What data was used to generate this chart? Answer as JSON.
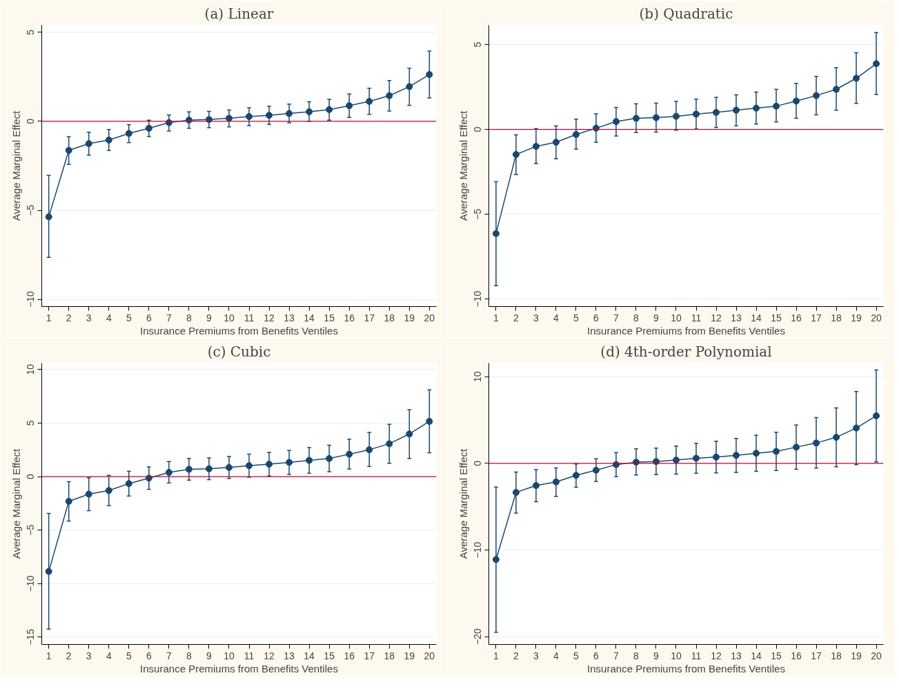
{
  "chart_data": [
    {
      "type": "line",
      "title": "(a) Linear",
      "xlabel": "Insurance Premiums from Benefits Ventiles",
      "ylabel": "Average Marginal Effect",
      "x": [
        1,
        2,
        3,
        4,
        5,
        6,
        7,
        8,
        9,
        10,
        11,
        12,
        13,
        14,
        15,
        16,
        17,
        18,
        19,
        20
      ],
      "series": [
        {
          "color": "#1a476f",
          "values": [
            -5.36,
            -1.63,
            -1.25,
            -1.05,
            -0.68,
            -0.39,
            -0.07,
            0.07,
            0.1,
            0.17,
            0.27,
            0.34,
            0.44,
            0.54,
            0.66,
            0.88,
            1.12,
            1.44,
            1.95,
            2.63
          ],
          "errors": [
            [
              -7.64,
              -3.03
            ],
            [
              -2.41,
              -0.86
            ],
            [
              -1.9,
              -0.61
            ],
            [
              -1.64,
              -0.46
            ],
            [
              -1.19,
              -0.19
            ],
            [
              -0.85,
              0.07
            ],
            [
              -0.54,
              0.36
            ],
            [
              -0.39,
              0.53
            ],
            [
              -0.36,
              0.56
            ],
            [
              -0.31,
              0.64
            ],
            [
              -0.24,
              0.76
            ],
            [
              -0.17,
              0.85
            ],
            [
              -0.08,
              0.97
            ],
            [
              0,
              1.1
            ],
            [
              0.07,
              1.24
            ],
            [
              0.22,
              1.54
            ],
            [
              0.39,
              1.86
            ],
            [
              0.58,
              2.29
            ],
            [
              0.9,
              2.98
            ],
            [
              1.31,
              3.95
            ]
          ]
        }
      ],
      "xlim": [
        0.65,
        20.35
      ],
      "xticks": [
        1,
        2,
        3,
        4,
        5,
        6,
        7,
        8,
        9,
        10,
        11,
        12,
        13,
        14,
        15,
        16,
        17,
        18,
        19,
        20
      ],
      "ylim": [
        -10.4,
        5.4
      ],
      "yticks": [
        -10,
        -5,
        0,
        5
      ],
      "ref_lines": [
        {
          "axis": "y",
          "value": 0,
          "color": "#c10534"
        }
      ],
      "grid": "y",
      "marker": "circle",
      "line_style": "solid"
    },
    {
      "type": "line",
      "title": "(b) Quadratic",
      "xlabel": "Insurance Premiums from Benefits Ventiles",
      "ylabel": "Average Marginal Effect",
      "x": [
        1,
        2,
        3,
        4,
        5,
        6,
        7,
        8,
        9,
        10,
        11,
        12,
        13,
        14,
        15,
        16,
        17,
        18,
        19,
        20
      ],
      "series": [
        {
          "color": "#1a476f",
          "values": [
            -6.14,
            -1.48,
            -1.0,
            -0.76,
            -0.3,
            0.07,
            0.46,
            0.65,
            0.69,
            0.77,
            0.9,
            1.0,
            1.13,
            1.25,
            1.37,
            1.67,
            1.99,
            2.36,
            3.01,
            3.87
          ],
          "errors": [
            [
              -9.21,
              -3.08
            ],
            [
              -2.66,
              -0.32
            ],
            [
              -2.02,
              0.04
            ],
            [
              -1.73,
              0.21
            ],
            [
              -1.16,
              0.6
            ],
            [
              -0.76,
              0.92
            ],
            [
              -0.39,
              1.29
            ],
            [
              -0.19,
              1.51
            ],
            [
              -0.16,
              1.55
            ],
            [
              -0.05,
              1.65
            ],
            [
              0.02,
              1.78
            ],
            [
              0.12,
              1.88
            ],
            [
              0.21,
              2.04
            ],
            [
              0.32,
              2.2
            ],
            [
              0.44,
              2.36
            ],
            [
              0.65,
              2.71
            ],
            [
              0.86,
              3.12
            ],
            [
              1.13,
              3.63
            ],
            [
              1.53,
              4.51
            ],
            [
              2.06,
              5.7
            ]
          ]
        }
      ],
      "xlim": [
        0.64,
        20.36
      ],
      "xticks": [
        1,
        2,
        3,
        4,
        5,
        6,
        7,
        8,
        9,
        10,
        11,
        12,
        13,
        14,
        15,
        16,
        17,
        18,
        19,
        20
      ],
      "ylim": [
        -10.44,
        6.14
      ],
      "yticks": [
        -10,
        -5,
        0,
        5
      ],
      "ref_lines": [
        {
          "axis": "y",
          "value": 0,
          "color": "#c10534"
        }
      ],
      "grid": "y",
      "marker": "circle",
      "line_style": "solid"
    },
    {
      "type": "line",
      "title": "(c) Cubic",
      "xlabel": "Insurance Premiums from Benefits Ventiles",
      "ylabel": "Average Marginal Effect",
      "x": [
        1,
        2,
        3,
        4,
        5,
        6,
        7,
        8,
        9,
        10,
        11,
        12,
        13,
        14,
        15,
        16,
        17,
        18,
        19,
        20
      ],
      "series": [
        {
          "color": "#1a476f",
          "values": [
            -8.86,
            -2.31,
            -1.64,
            -1.3,
            -0.65,
            -0.14,
            0.39,
            0.68,
            0.73,
            0.85,
            1.02,
            1.16,
            1.33,
            1.52,
            1.69,
            2.09,
            2.51,
            3.07,
            3.98,
            5.16
          ],
          "errors": [
            [
              -14.25,
              -3.44
            ],
            [
              -4.15,
              -0.48
            ],
            [
              -3.19,
              -0.11
            ],
            [
              -2.71,
              0.11
            ],
            [
              -1.81,
              0.51
            ],
            [
              -1.18,
              0.9
            ],
            [
              -0.59,
              1.41
            ],
            [
              -0.34,
              1.69
            ],
            [
              -0.28,
              1.75
            ],
            [
              -0.17,
              1.89
            ],
            [
              -0.06,
              2.09
            ],
            [
              0.06,
              2.26
            ],
            [
              0.2,
              2.45
            ],
            [
              0.31,
              2.71
            ],
            [
              0.45,
              2.93
            ],
            [
              0.71,
              3.5
            ],
            [
              0.96,
              4.12
            ],
            [
              1.24,
              4.88
            ],
            [
              1.69,
              6.26
            ],
            [
              2.23,
              8.1
            ]
          ]
        }
      ],
      "xlim": [
        0.65,
        20.35
      ],
      "xticks": [
        1,
        2,
        3,
        4,
        5,
        6,
        7,
        8,
        9,
        10,
        11,
        12,
        13,
        14,
        15,
        16,
        17,
        18,
        19,
        20
      ],
      "ylim": [
        -15.68,
        10.6
      ],
      "yticks": [
        -15,
        -10,
        -5,
        0,
        5,
        10
      ],
      "ref_lines": [
        {
          "axis": "y",
          "value": 0,
          "color": "#c10534"
        }
      ],
      "grid": "y",
      "marker": "circle",
      "line_style": "solid"
    },
    {
      "type": "line",
      "title": "(d) 4th-order Polynomial",
      "xlabel": "Insurance Premiums from Benefits Ventiles",
      "ylabel": "Average Marginal Effect",
      "x": [
        1,
        2,
        3,
        4,
        5,
        6,
        7,
        8,
        9,
        10,
        11,
        12,
        13,
        14,
        15,
        16,
        17,
        18,
        19,
        20
      ],
      "series": [
        {
          "color": "#1a476f",
          "values": [
            -11.09,
            -3.35,
            -2.56,
            -2.14,
            -1.38,
            -0.79,
            -0.14,
            0.14,
            0.21,
            0.38,
            0.59,
            0.73,
            0.93,
            1.17,
            1.38,
            1.87,
            2.35,
            3.01,
            4.08,
            5.49
          ],
          "errors": [
            [
              -19.48,
              -2.73
            ],
            [
              -5.73,
              -1.0
            ],
            [
              -4.42,
              -0.73
            ],
            [
              -3.8,
              -0.52
            ],
            [
              -2.76,
              -0.07
            ],
            [
              -2.07,
              0.52
            ],
            [
              -1.55,
              1.24
            ],
            [
              -1.35,
              1.69
            ],
            [
              -1.31,
              1.76
            ],
            [
              -1.24,
              2.0
            ],
            [
              -1.14,
              2.31
            ],
            [
              -1.1,
              2.56
            ],
            [
              -1.04,
              2.87
            ],
            [
              -0.93,
              3.25
            ],
            [
              -0.83,
              3.59
            ],
            [
              -0.69,
              4.42
            ],
            [
              -0.55,
              5.28
            ],
            [
              -0.38,
              6.39
            ],
            [
              -0.14,
              8.29
            ],
            [
              0.17,
              10.78
            ]
          ]
        }
      ],
      "xlim": [
        0.64,
        20.36
      ],
      "xticks": [
        1,
        2,
        3,
        4,
        5,
        6,
        7,
        8,
        9,
        10,
        11,
        12,
        13,
        14,
        15,
        16,
        17,
        18,
        19,
        20
      ],
      "ylim": [
        -20.9,
        11.57
      ],
      "yticks": [
        -20,
        -10,
        0,
        10
      ],
      "ref_lines": [
        {
          "axis": "y",
          "value": 0,
          "color": "#c10534"
        }
      ],
      "grid": "y",
      "marker": "circle",
      "line_style": "solid"
    }
  ]
}
